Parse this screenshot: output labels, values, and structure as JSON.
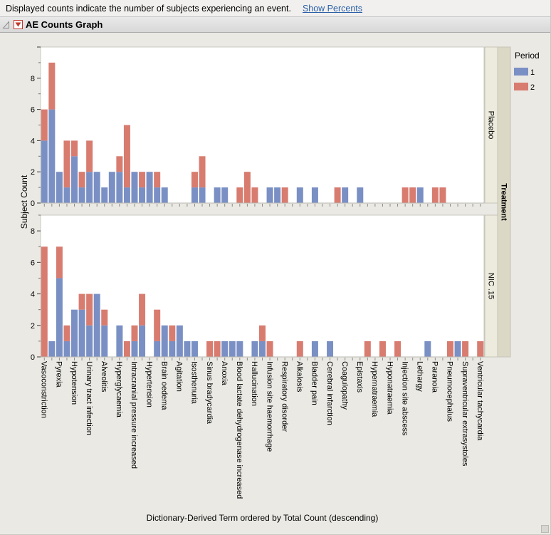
{
  "header": {
    "message": "Displayed counts indicate the number of subjects experiencing an event.",
    "link_label": "Show Percents"
  },
  "title_bar": {
    "title": "AE Counts Graph"
  },
  "chart_data": {
    "type": "bar",
    "stacked": true,
    "orientation": "vertical",
    "xlabel": "Dictionary-Derived Term ordered by Total Count (descending)",
    "ylabel": "Subject Count",
    "facet_label": "Treatment",
    "legend": {
      "title": "Period",
      "position": "top-right",
      "items": [
        {
          "label": "1",
          "color": "#7A90C4"
        },
        {
          "label": "2",
          "color": "#D87C70"
        }
      ]
    },
    "colors": {
      "period1": "#7A90C4",
      "period2": "#D87C70"
    },
    "x_labels_every_other_slot": true,
    "x_labels": [
      "Vasoconstriction",
      "Pyrexia",
      "Hypotension",
      "Urinary tract infection",
      "Alveolitis",
      "Hyperglycaemia",
      "Intracranial pressure increased",
      "Hypertension",
      "Brain oedema",
      "Agitation",
      "Isosthenuria",
      "Sinus bradycardia",
      "Anoxia",
      "Blood lactate dehydrogenase increased",
      "Hallucination",
      "Infusion site haemorrhage",
      "Respiratory disorder",
      "Alkalosis",
      "Bladder pain",
      "Cerebral infarction",
      "Coagulopathy",
      "Epistaxis",
      "Hypernatraemia",
      "Hyponatraemia",
      "Injection site abscess",
      "Lethargy",
      "Paranoia",
      "Pneumocephalus",
      "Supraventricular extrasystoles",
      "Ventricular tachycardia"
    ],
    "panels": [
      {
        "name": "Placebo",
        "ymax": 10,
        "yticks": [
          0,
          2,
          4,
          6,
          8
        ],
        "series": [
          {
            "name": "1",
            "values": [
              4,
              6,
              2,
              1,
              3,
              1,
              2,
              2,
              1,
              2,
              2,
              1,
              2,
              1,
              2,
              1,
              1,
              0,
              0,
              0,
              1,
              1,
              0,
              1,
              1,
              0,
              0,
              0,
              0,
              0,
              1,
              1,
              0,
              0,
              1,
              0,
              1,
              0,
              0,
              0,
              1,
              0,
              1,
              0,
              0,
              0,
              0,
              0,
              0,
              0,
              1,
              0,
              0,
              0,
              0,
              0,
              0,
              0,
              0
            ]
          },
          {
            "name": "2",
            "values": [
              2,
              3,
              0,
              3,
              1,
              1,
              2,
              0,
              0,
              0,
              1,
              4,
              0,
              1,
              0,
              1,
              0,
              0,
              0,
              0,
              1,
              2,
              0,
              0,
              0,
              0,
              1,
              2,
              1,
              0,
              0,
              0,
              1,
              0,
              0,
              0,
              0,
              0,
              0,
              1,
              0,
              0,
              0,
              0,
              0,
              0,
              0,
              0,
              1,
              1,
              0,
              0,
              1,
              1,
              0,
              0,
              0,
              0,
              0
            ]
          }
        ]
      },
      {
        "name": "NIC .15",
        "ymax": 9,
        "yticks": [
          0,
          2,
          4,
          6,
          8
        ],
        "series": [
          {
            "name": "1",
            "values": [
              0,
              1,
              5,
              1,
              3,
              3,
              2,
              4,
              2,
              0,
              2,
              0,
              1,
              2,
              0,
              1,
              2,
              1,
              2,
              1,
              1,
              0,
              0,
              0,
              1,
              1,
              1,
              0,
              1,
              1,
              0,
              0,
              0,
              0,
              0,
              0,
              1,
              0,
              1,
              0,
              0,
              0,
              0,
              0,
              0,
              0,
              0,
              0,
              0,
              0,
              0,
              1,
              0,
              0,
              0,
              1,
              0,
              0,
              0
            ]
          },
          {
            "name": "2",
            "values": [
              7,
              0,
              2,
              1,
              0,
              1,
              2,
              0,
              1,
              0,
              0,
              1,
              1,
              2,
              0,
              2,
              0,
              1,
              0,
              0,
              0,
              0,
              1,
              1,
              0,
              0,
              0,
              0,
              0,
              1,
              1,
              0,
              0,
              0,
              1,
              0,
              0,
              0,
              0,
              0,
              0,
              0,
              0,
              1,
              0,
              1,
              0,
              1,
              0,
              0,
              0,
              0,
              0,
              0,
              1,
              0,
              1,
              0,
              1
            ]
          }
        ]
      }
    ]
  }
}
